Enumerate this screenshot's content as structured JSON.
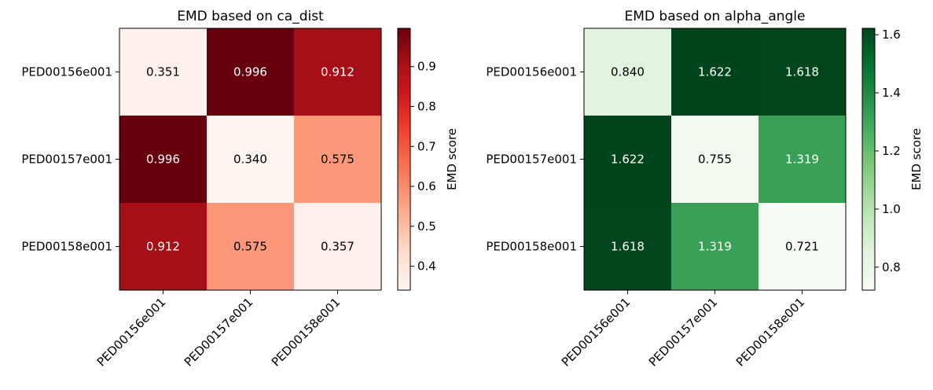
{
  "chart_data": [
    {
      "type": "heatmap",
      "title": "EMD based on ca_dist",
      "xlabel": "",
      "ylabel": "",
      "x_categories": [
        "PED00156e001",
        "PED00157e001",
        "PED00158e001"
      ],
      "y_categories": [
        "PED00156e001",
        "PED00157e001",
        "PED00158e001"
      ],
      "values": [
        [
          0.351,
          0.996,
          0.912
        ],
        [
          0.996,
          0.34,
          0.575
        ],
        [
          0.912,
          0.575,
          0.357
        ]
      ],
      "value_labels": [
        [
          "0.351",
          "0.996",
          "0.912"
        ],
        [
          "0.996",
          "0.340",
          "0.575"
        ],
        [
          "0.912",
          "0.575",
          "0.357"
        ]
      ],
      "colormap": "Reds",
      "vmin": 0.34,
      "vmax": 0.996,
      "colorbar": {
        "label": "EMD score",
        "ticks": [
          0.4,
          0.5,
          0.6,
          0.7,
          0.8,
          0.9
        ],
        "tick_labels": [
          "0.4",
          "0.5",
          "0.6",
          "0.7",
          "0.8",
          "0.9"
        ]
      }
    },
    {
      "type": "heatmap",
      "title": "EMD based on alpha_angle",
      "xlabel": "",
      "ylabel": "",
      "x_categories": [
        "PED00156e001",
        "PED00157e001",
        "PED00158e001"
      ],
      "y_categories": [
        "PED00156e001",
        "PED00157e001",
        "PED00158e001"
      ],
      "values": [
        [
          0.84,
          1.622,
          1.618
        ],
        [
          1.622,
          0.755,
          1.319
        ],
        [
          1.618,
          1.319,
          0.721
        ]
      ],
      "value_labels": [
        [
          "0.840",
          "1.622",
          "1.618"
        ],
        [
          "1.622",
          "0.755",
          "1.319"
        ],
        [
          "1.618",
          "1.319",
          "0.721"
        ]
      ],
      "colormap": "Greens",
      "vmin": 0.721,
      "vmax": 1.622,
      "colorbar": {
        "label": "EMD score",
        "ticks": [
          0.8,
          1.0,
          1.2,
          1.4,
          1.6
        ],
        "tick_labels": [
          "0.8",
          "1.0",
          "1.2",
          "1.4",
          "1.6"
        ]
      }
    }
  ]
}
